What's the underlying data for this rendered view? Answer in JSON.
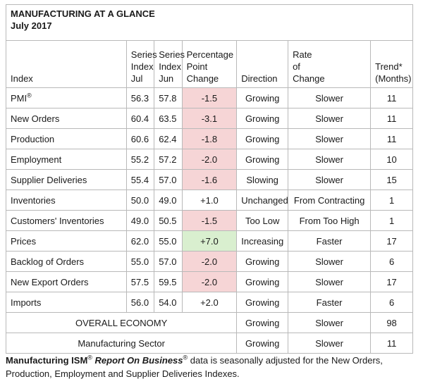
{
  "title": "MANUFACTURING AT A GLANCE",
  "subtitle": "July 2017",
  "headers": {
    "index": "Index",
    "jul_line1": "Series",
    "jul_line2": "Index",
    "jul_line3": "Jul",
    "jun_line1": "Series",
    "jun_line2": "Index",
    "jun_line3": "Jun",
    "chg_line1": "Percentage",
    "chg_line2": "Point",
    "chg_line3": "Change",
    "direction": "Direction",
    "rate_line1": "Rate",
    "rate_line2": "of",
    "rate_line3": "Change",
    "trend_line1": "Trend*",
    "trend_line2": "(Months)"
  },
  "rows": [
    {
      "name": "PMI",
      "name_sup": "®",
      "jul": "56.3",
      "jun": "57.8",
      "change": "-1.5",
      "change_color": "#f6d5d6",
      "direction": "Growing",
      "rate": "Slower",
      "trend": "11"
    },
    {
      "name": "New Orders",
      "jul": "60.4",
      "jun": "63.5",
      "change": "-3.1",
      "change_color": "#f6d5d6",
      "direction": "Growing",
      "rate": "Slower",
      "trend": "11"
    },
    {
      "name": "Production",
      "jul": "60.6",
      "jun": "62.4",
      "change": "-1.8",
      "change_color": "#f6d5d6",
      "direction": "Growing",
      "rate": "Slower",
      "trend": "11"
    },
    {
      "name": "Employment",
      "jul": "55.2",
      "jun": "57.2",
      "change": "-2.0",
      "change_color": "#f6d5d6",
      "direction": "Growing",
      "rate": "Slower",
      "trend": "10"
    },
    {
      "name": "Supplier Deliveries",
      "jul": "55.4",
      "jun": "57.0",
      "change": "-1.6",
      "change_color": "#f6d5d6",
      "direction": "Slowing",
      "rate": "Slower",
      "trend": "15"
    },
    {
      "name": "Inventories",
      "jul": "50.0",
      "jun": "49.0",
      "change": "+1.0",
      "change_color": "#ffffff",
      "direction": "Unchanged",
      "rate": "From Contracting",
      "trend": "1"
    },
    {
      "name": "Customers' Inventories",
      "jul": "49.0",
      "jun": "50.5",
      "change": "-1.5",
      "change_color": "#f6d5d6",
      "direction": "Too Low",
      "rate": "From Too High",
      "trend": "1"
    },
    {
      "name": "Prices",
      "jul": "62.0",
      "jun": "55.0",
      "change": "+7.0",
      "change_color": "#d9efcf",
      "direction": "Increasing",
      "rate": "Faster",
      "trend": "17"
    },
    {
      "name": "Backlog of Orders",
      "jul": "55.0",
      "jun": "57.0",
      "change": "-2.0",
      "change_color": "#f6d5d6",
      "direction": "Growing",
      "rate": "Slower",
      "trend": "6"
    },
    {
      "name": "New Export Orders",
      "jul": "57.5",
      "jun": "59.5",
      "change": "-2.0",
      "change_color": "#f6d5d6",
      "direction": "Growing",
      "rate": "Slower",
      "trend": "17"
    },
    {
      "name": "Imports",
      "jul": "56.0",
      "jun": "54.0",
      "change": "+2.0",
      "change_color": "#ffffff",
      "direction": "Growing",
      "rate": "Faster",
      "trend": "6"
    }
  ],
  "summary": [
    {
      "label": "OVERALL ECONOMY",
      "direction": "Growing",
      "rate": "Slower",
      "trend": "98"
    },
    {
      "label": "Manufacturing Sector",
      "direction": "Growing",
      "rate": "Slower",
      "trend": "11"
    }
  ],
  "footnote": {
    "part1": "Manufacturing ISM",
    "sup1": "®",
    "part2": "Report On Business",
    "sup2": "®",
    "part3": " data is seasonally adjusted for the New Orders, Production, Employment and Supplier Deliveries Indexes."
  }
}
